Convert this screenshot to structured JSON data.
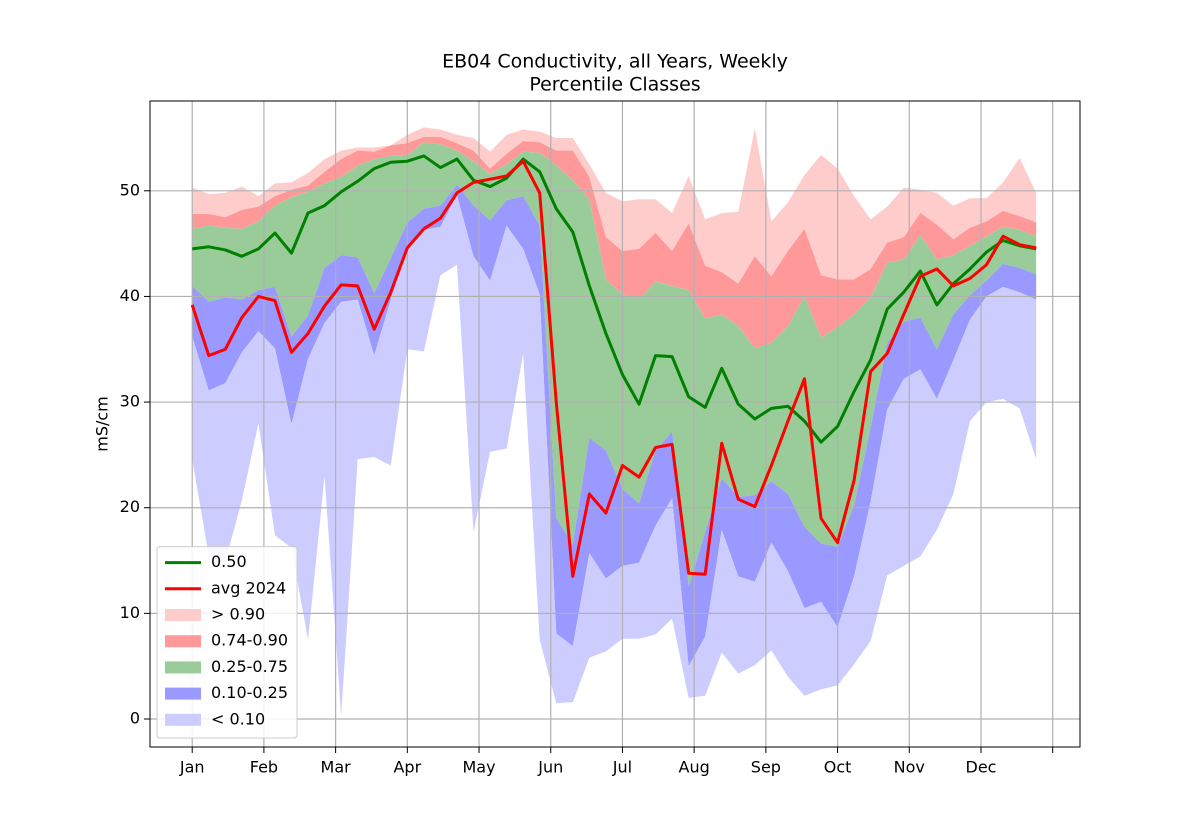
{
  "chart_data": {
    "type": "percentile_bands",
    "title": "EB04 Conductivity, all Years, Weekly",
    "subtitle": "Percentile Classes",
    "ylabel": "mS/cm",
    "grid": true,
    "legend": "lower left",
    "x": [
      0,
      1,
      2,
      3,
      4,
      5,
      6,
      7,
      8,
      9,
      10,
      11,
      12,
      13,
      14,
      15,
      16,
      17,
      18,
      19,
      20,
      21,
      22,
      23,
      24,
      25,
      26,
      27,
      28,
      29,
      30,
      31,
      32,
      33,
      34,
      35,
      36,
      37,
      38,
      39,
      40,
      41,
      42,
      43,
      44,
      45,
      46,
      47,
      48,
      49,
      50,
      51
    ],
    "xlim": [
      -2.55,
      53.65
    ],
    "xticks": [
      {
        "value": 0,
        "label": "Jan"
      },
      {
        "value": 4.333,
        "label": "Feb"
      },
      {
        "value": 8.667,
        "label": "Mar"
      },
      {
        "value": 13,
        "label": "Apr"
      },
      {
        "value": 17.333,
        "label": "May"
      },
      {
        "value": 21.667,
        "label": "Jun"
      },
      {
        "value": 26,
        "label": "Jul"
      },
      {
        "value": 30.333,
        "label": "Aug"
      },
      {
        "value": 34.667,
        "label": "Sep"
      },
      {
        "value": 39,
        "label": "Oct"
      },
      {
        "value": 43.333,
        "label": "Nov"
      },
      {
        "value": 47.667,
        "label": "Dec"
      },
      {
        "value": 52,
        "label": null
      }
    ],
    "ylim": [
      -2.65,
      58.5
    ],
    "yticks": [
      0,
      10,
      20,
      30,
      40,
      50
    ],
    "series": [
      {
        "name": "0.50",
        "color": "#008000",
        "values": [
          44.5,
          44.7,
          44.4,
          43.8,
          44.5,
          46,
          44.1,
          47.9,
          48.6,
          49.9,
          50.9,
          52.1,
          52.7,
          52.8,
          53.3,
          52.2,
          53,
          51,
          50.4,
          51.2,
          53,
          51.8,
          48.3,
          46.1,
          41,
          36.5,
          32.6,
          29.8,
          34.4,
          34.3,
          30.5,
          29.5,
          33.2,
          29.8,
          28.4,
          29.4,
          29.6,
          28.2,
          26.2,
          27.7,
          31,
          34,
          38.8,
          40.4,
          42.4,
          39.2,
          41.2,
          42.6,
          44.2,
          45.3,
          44.8,
          44.5
        ]
      },
      {
        "name": "avg 2024",
        "color": "#ff0000",
        "values": [
          39.2,
          34.4,
          35,
          38,
          40,
          39.6,
          34.7,
          36.5,
          39.1,
          41.1,
          41,
          36.9,
          40.4,
          44.6,
          46.4,
          47.4,
          49.8,
          50.8,
          51.1,
          51.4,
          52.8,
          49.8,
          30,
          13.5,
          21.3,
          19.5,
          24,
          22.9,
          25.7,
          26,
          13.8,
          13.7,
          26.1,
          20.8,
          20.1,
          24,
          28.2,
          32.2,
          19,
          16.7,
          22.6,
          32.9,
          34.6,
          38.3,
          41.9,
          42.6,
          41,
          41.7,
          43,
          45.7,
          44.9,
          44.6
        ]
      }
    ],
    "bands": [
      {
        "name": "> 0.90",
        "color": "#ffcccc",
        "values": [
          50.3,
          49.7,
          49.8,
          50.4,
          49.5,
          50.7,
          50.8,
          51.7,
          53,
          53.8,
          54.1,
          54.1,
          54.3,
          55.3,
          56,
          55.8,
          55.3,
          55,
          53.7,
          55.3,
          55.8,
          55.6,
          55,
          55,
          52.5,
          49.8,
          49,
          49.2,
          49.2,
          47.9,
          51.4,
          47.3,
          47.9,
          48,
          55.9,
          47.1,
          48.9,
          51.5,
          53.4,
          52.1,
          49.5,
          47.3,
          48.5,
          50.3,
          50.1,
          49.8,
          48.6,
          49.3,
          49.3,
          50.8,
          53.1,
          49.8
        ]
      },
      {
        "name": "0.74-0.90",
        "color": "#ff9999",
        "values": [
          47.8,
          47.8,
          47.5,
          48.2,
          48.5,
          49.5,
          50.1,
          50.5,
          51.8,
          53,
          53.8,
          53.7,
          54.3,
          54.5,
          55.1,
          55.1,
          54.5,
          53.8,
          52.1,
          53.5,
          54.7,
          54.6,
          53.8,
          53.8,
          51.3,
          45.6,
          44.3,
          44.5,
          46,
          44.3,
          46.9,
          42.9,
          42.3,
          41.2,
          43.8,
          41.9,
          44.3,
          46.4,
          42,
          41.6,
          41.6,
          42.6,
          45.1,
          45.6,
          47.9,
          46.8,
          45.4,
          46.5,
          47.1,
          48.1,
          47.6,
          47
        ]
      },
      {
        "name": "0.25-0.75",
        "color": "#99cc99",
        "values": [
          46.4,
          46.7,
          46.5,
          46.4,
          47.1,
          48.6,
          49.4,
          49.9,
          50.7,
          51.3,
          52.4,
          53,
          53.3,
          53.4,
          54.6,
          54.4,
          53.8,
          52.8,
          51.6,
          52.5,
          53.7,
          53.6,
          52.4,
          51,
          49.2,
          41.6,
          40.2,
          39.8,
          41.4,
          41,
          40.6,
          37.9,
          38.3,
          37.2,
          35.1,
          35.6,
          37.2,
          40,
          36.1,
          37.1,
          38.3,
          39.9,
          43.2,
          43.5,
          45.8,
          43.5,
          43.9,
          44.8,
          45.7,
          46.6,
          46.3,
          45.7
        ]
      },
      {
        "name": "0.10-0.25",
        "color": "#9999ff",
        "values": [
          41,
          39.5,
          39.9,
          39.7,
          40.6,
          40.9,
          36.2,
          38.2,
          42.7,
          43.9,
          43.7,
          40.3,
          43.6,
          47,
          48.3,
          48.6,
          50.6,
          48.6,
          47.2,
          49.1,
          49.5,
          46.7,
          19,
          16.5,
          26.6,
          25.4,
          21.8,
          20.4,
          25.4,
          27.2,
          12.5,
          17.7,
          22.8,
          21,
          21.2,
          22.5,
          21.3,
          18.2,
          16.6,
          16.3,
          20.2,
          27.6,
          35.6,
          37.6,
          38,
          35,
          38.3,
          40.1,
          41.5,
          43.1,
          42.7,
          42.1
        ]
      },
      {
        "name": "< 0.10",
        "color": "#ccccff",
        "values": [
          36.2,
          31.1,
          31.8,
          34.7,
          36.7,
          35.1,
          27.9,
          34.1,
          37.5,
          39.5,
          39.7,
          34.4,
          39.7,
          44.6,
          46.3,
          46.6,
          49.6,
          43.8,
          41.5,
          46.7,
          44.5,
          40.2,
          8.1,
          6.9,
          15.7,
          13.3,
          14.5,
          14.8,
          18.3,
          20.9,
          5,
          7.8,
          17.9,
          13.5,
          13,
          16.7,
          14,
          10.5,
          11.1,
          8.7,
          13.5,
          20.6,
          29.3,
          32.2,
          33.1,
          30.3,
          34,
          37.8,
          40,
          40.9,
          40.4,
          39.7
        ]
      }
    ],
    "band_floor": [
      24.6,
      15.5,
      14.9,
      20.7,
      28,
      17.4,
      16.2,
      7.5,
      23,
      0.3,
      24.6,
      24.8,
      24,
      35,
      34.8,
      42,
      43,
      17.7,
      25.3,
      25.6,
      34.6,
      7.5,
      1.5,
      1.6,
      5.8,
      6.4,
      7.6,
      7.6,
      8,
      9.5,
      2,
      2.2,
      6.3,
      4.3,
      5.1,
      6.5,
      4,
      2.2,
      2.8,
      3.2,
      5.2,
      7.4,
      13.6,
      14.5,
      15.4,
      17.9,
      21.3,
      28.2,
      30,
      30.3,
      29.4,
      24.6
    ]
  }
}
